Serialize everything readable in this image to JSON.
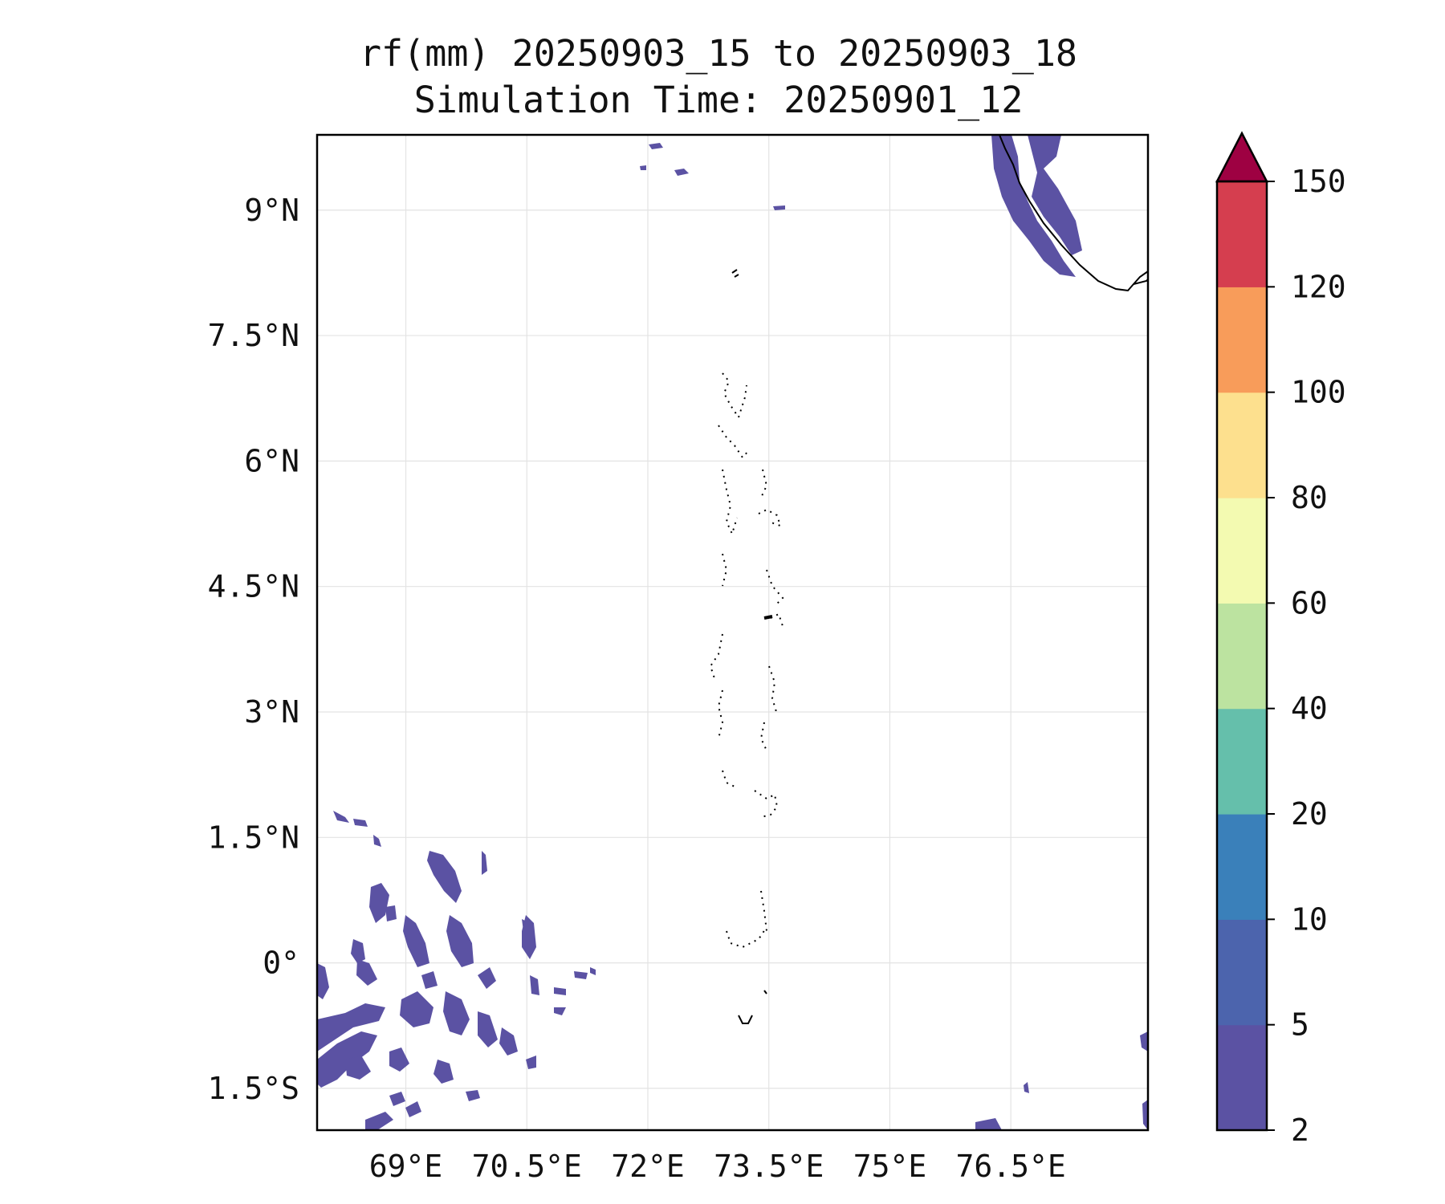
{
  "title": {
    "line1": "rf(mm) 20250903_15 to 20250903_18",
    "line2": "Simulation Time: 20250901_12"
  },
  "map": {
    "region": "Maldives / Arabian Sea",
    "lon_range": [
      67.9,
      78.2
    ],
    "lat_range": [
      -2.0,
      9.9
    ],
    "lon_ticks": [
      {
        "value": 69.0,
        "label": "69°E"
      },
      {
        "value": 70.5,
        "label": "70.5°E"
      },
      {
        "value": 72.0,
        "label": "72°E"
      },
      {
        "value": 73.5,
        "label": "73.5°E"
      },
      {
        "value": 75.0,
        "label": "75°E"
      },
      {
        "value": 76.5,
        "label": "76.5°E"
      }
    ],
    "lat_ticks": [
      {
        "value": 9.0,
        "label": "9°N"
      },
      {
        "value": 7.5,
        "label": "7.5°N"
      },
      {
        "value": 6.0,
        "label": "6°N"
      },
      {
        "value": 4.5,
        "label": "4.5°N"
      },
      {
        "value": 3.0,
        "label": "3°N"
      },
      {
        "value": 1.5,
        "label": "1.5°N"
      },
      {
        "value": 0.0,
        "label": "0°"
      },
      {
        "value": -1.5,
        "label": "1.5°S"
      }
    ],
    "grid": true,
    "rain_color": "#5b52a3"
  },
  "colorbar": {
    "levels": [
      "2",
      "5",
      "10",
      "20",
      "40",
      "60",
      "80",
      "100",
      "120",
      "150"
    ],
    "colors": [
      "#5b52a3",
      "#4c64ad",
      "#3a80ba",
      "#65bfab",
      "#bce3a0",
      "#f3fab1",
      "#fde08e",
      "#f89c5a",
      "#d53e4f"
    ],
    "extend_color": "#9e0142",
    "extend": "max"
  }
}
